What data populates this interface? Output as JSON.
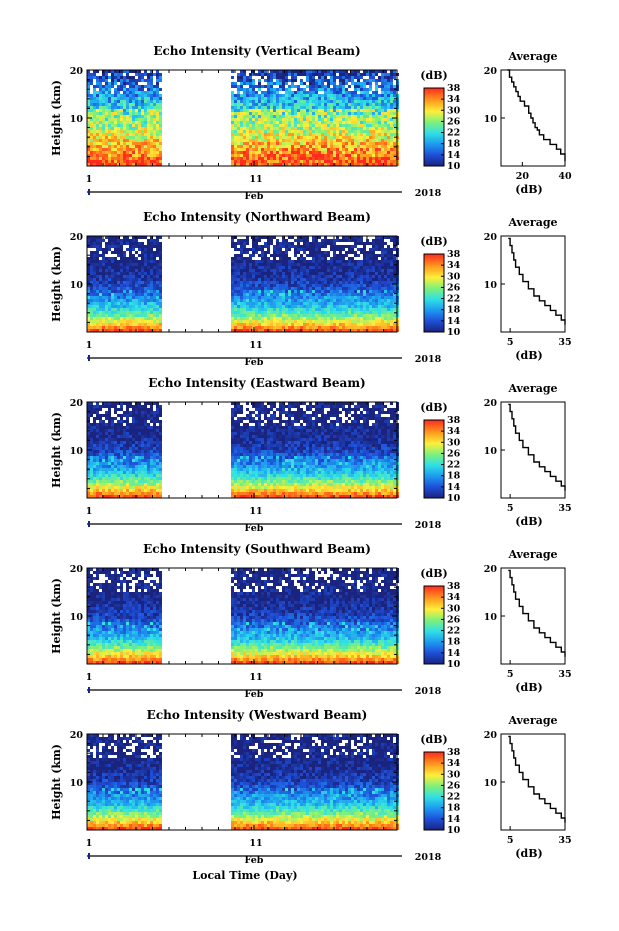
{
  "colors": {
    "accent": "#1a237e"
  },
  "shared": {
    "xlabel": "Local Time (Day)",
    "x_ticks": [
      "1",
      "11"
    ],
    "month": "Feb",
    "year": "2018",
    "ylabel": "Height (km)",
    "y_ticks": [
      "10",
      "20"
    ],
    "colorbar_unit": "(dB)",
    "colorbar_ticks": [
      "10",
      "14",
      "18",
      "22",
      "26",
      "30",
      "34",
      "38"
    ],
    "avg_title": "Average",
    "avg_xlabel": "(dB)"
  },
  "chart_data": [
    {
      "type": "heatmap",
      "title": "Echo Intensity (Vertical Beam)",
      "x_range_days": [
        1,
        11
      ],
      "ylim": [
        0,
        20
      ],
      "clim": [
        10,
        38
      ],
      "data_gap_days": [
        5.5,
        10.0
      ],
      "profile": {
        "type": "line",
        "title": "Average",
        "xlabel": "(dB)",
        "ylabel": "Height (km)",
        "xticks": [
          "20",
          "40"
        ],
        "xlim": [
          10,
          40
        ],
        "ylim": [
          0,
          20
        ],
        "x": [
          13,
          14,
          15,
          16,
          17,
          18,
          19,
          21,
          23,
          24,
          25,
          26,
          27,
          28,
          30,
          33,
          36,
          38,
          40
        ],
        "y": [
          20,
          18.5,
          17.5,
          16.5,
          15.5,
          14.5,
          13.5,
          12.5,
          11,
          10,
          9,
          8,
          7.5,
          6.5,
          5.5,
          4.5,
          3.5,
          2.5,
          1
        ]
      }
    },
    {
      "type": "heatmap",
      "title": "Echo Intensity (Northward Beam)",
      "x_range_days": [
        1,
        11
      ],
      "ylim": [
        0,
        20
      ],
      "clim": [
        10,
        38
      ],
      "data_gap_days": [
        5.5,
        10.0
      ],
      "profile": {
        "type": "line",
        "title": "Average",
        "xlabel": "(dB)",
        "ylabel": "Height (km)",
        "xticks": [
          "5",
          "35"
        ],
        "xlim": [
          0,
          35
        ],
        "ylim": [
          0,
          20
        ],
        "x": [
          4,
          5,
          6,
          7,
          8,
          10,
          12,
          15,
          18,
          21,
          24,
          27,
          30,
          33,
          35
        ],
        "y": [
          19.5,
          18,
          16.5,
          15,
          13.5,
          12,
          10.5,
          9,
          7.5,
          6.5,
          5.5,
          4.5,
          3.5,
          2.5,
          1.5
        ]
      }
    },
    {
      "type": "heatmap",
      "title": "Echo Intensity (Eastward Beam)",
      "x_range_days": [
        1,
        11
      ],
      "ylim": [
        0,
        20
      ],
      "clim": [
        10,
        38
      ],
      "data_gap_days": [
        5.5,
        10.0
      ],
      "profile": {
        "type": "line",
        "title": "Average",
        "xlabel": "(dB)",
        "ylabel": "Height (km)",
        "xticks": [
          "5",
          "35"
        ],
        "xlim": [
          0,
          35
        ],
        "ylim": [
          0,
          20
        ],
        "x": [
          4,
          5,
          6,
          7,
          8,
          10,
          12,
          15,
          18,
          21,
          24,
          27,
          30,
          33,
          35
        ],
        "y": [
          19.5,
          18,
          16.5,
          15,
          13.5,
          12,
          10.5,
          9,
          7.5,
          6.5,
          5.5,
          4.5,
          3.5,
          2.5,
          1.5
        ]
      }
    },
    {
      "type": "heatmap",
      "title": "Echo Intensity (Southward Beam)",
      "x_range_days": [
        1,
        11
      ],
      "ylim": [
        0,
        20
      ],
      "clim": [
        10,
        38
      ],
      "data_gap_days": [
        5.5,
        10.0
      ],
      "profile": {
        "type": "line",
        "title": "Average",
        "xlabel": "(dB)",
        "ylabel": "Height (km)",
        "xticks": [
          "5",
          "35"
        ],
        "xlim": [
          0,
          35
        ],
        "ylim": [
          0,
          20
        ],
        "x": [
          4,
          5,
          6,
          7,
          8,
          10,
          12,
          15,
          18,
          21,
          24,
          27,
          30,
          33,
          35
        ],
        "y": [
          19.5,
          18,
          16.5,
          15,
          13.5,
          12,
          10.5,
          9,
          7.5,
          6.5,
          5.5,
          4.5,
          3.5,
          2.5,
          1.5
        ]
      }
    },
    {
      "type": "heatmap",
      "title": "Echo Intensity (Westward Beam)",
      "x_range_days": [
        1,
        11
      ],
      "ylim": [
        0,
        20
      ],
      "clim": [
        10,
        38
      ],
      "data_gap_days": [
        5.5,
        10.0
      ],
      "profile": {
        "type": "line",
        "title": "Average",
        "xlabel": "(dB)",
        "ylabel": "Height (km)",
        "xticks": [
          "5",
          "35"
        ],
        "xlim": [
          0,
          35
        ],
        "ylim": [
          0,
          20
        ],
        "x": [
          4,
          5,
          6,
          7,
          8,
          10,
          12,
          15,
          18,
          21,
          24,
          27,
          30,
          33,
          35
        ],
        "y": [
          19.5,
          18,
          16.5,
          15,
          13.5,
          12,
          10.5,
          9,
          7.5,
          6.5,
          5.5,
          4.5,
          3.5,
          2.5,
          1.5
        ]
      }
    }
  ]
}
